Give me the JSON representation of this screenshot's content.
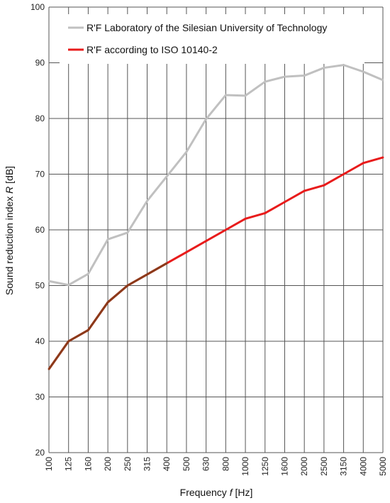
{
  "chart_data": {
    "type": "line",
    "x": [
      "100",
      "125",
      "160",
      "200",
      "250",
      "315",
      "400",
      "500",
      "630",
      "800",
      "1000",
      "1250",
      "1600",
      "2000",
      "2500",
      "3150",
      "4000",
      "5000"
    ],
    "series": [
      {
        "name": "R'F Laboratory of the Silesian University of Technology",
        "color": "#c0c0c0",
        "values": [
          50.8,
          50.1,
          52.1,
          58.3,
          59.5,
          65.2,
          69.6,
          74.0,
          79.9,
          84.2,
          84.1,
          86.6,
          87.5,
          87.7,
          89.1,
          89.6,
          88.4,
          86.9
        ]
      },
      {
        "name": "R'F according to ISO 10140-2",
        "color": "#e81b1b",
        "overlap_color": "#8b3a1a",
        "values": [
          35,
          40,
          42,
          47,
          50,
          52,
          54,
          56,
          58,
          60,
          62,
          63,
          65,
          67,
          68,
          70,
          72,
          73
        ]
      }
    ],
    "ylim": [
      20,
      100
    ],
    "yticks": [
      "20",
      "30",
      "40",
      "50",
      "60",
      "70",
      "80",
      "90",
      "100"
    ],
    "ylabel_text": "Sound reduction index",
    "ylabel_symbol": "R",
    "ylabel_unit": "[dB]",
    "xlabel_text": "Frequency",
    "xlabel_symbol": "f",
    "xlabel_unit": "[Hz]",
    "grid": true,
    "legend_position": "top"
  }
}
